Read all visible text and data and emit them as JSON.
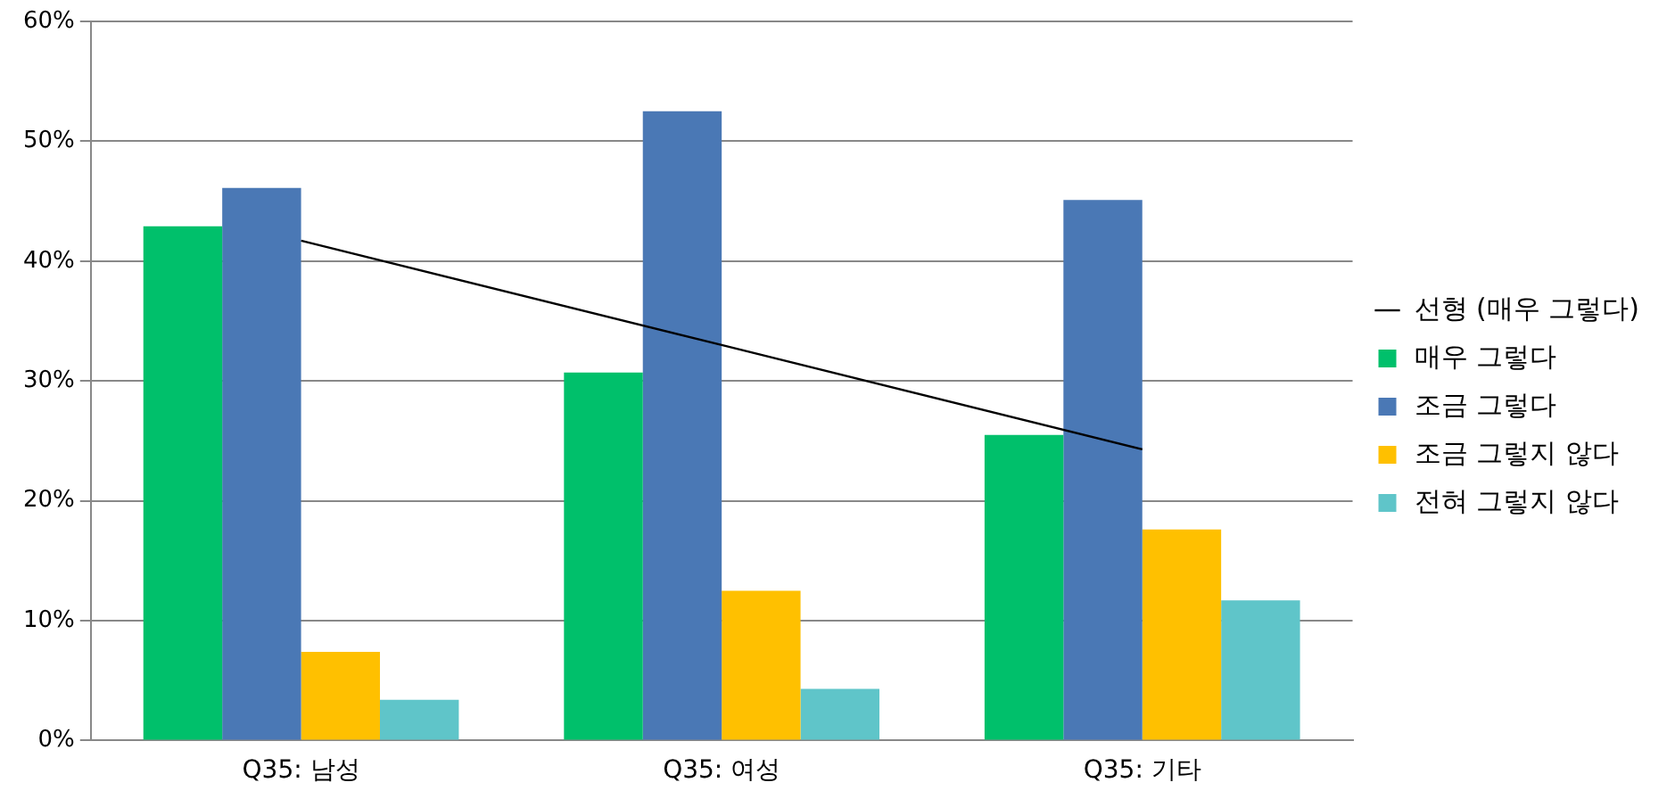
{
  "chart_data": {
    "type": "bar",
    "categories": [
      "Q35: 남성",
      "Q35: 여성",
      "Q35: 기타"
    ],
    "series": [
      {
        "name": "매우 그렇다",
        "color": "#00c06b",
        "values": [
          42.9,
          30.7,
          25.5
        ]
      },
      {
        "name": "조금 그렇다",
        "color": "#4a78b5",
        "values": [
          46.1,
          52.5,
          45.1
        ]
      },
      {
        "name": "조금 그렇지 않다",
        "color": "#ffc000",
        "values": [
          7.4,
          12.5,
          17.6
        ]
      },
      {
        "name": "전혀 그렇지 않다",
        "color": "#5fc5c9",
        "values": [
          3.4,
          4.3,
          11.7
        ]
      },
      {
        "name": "선형 (매우 그렇다)",
        "type": "line",
        "color": "#000000",
        "values": [
          41.7,
          33.0,
          24.3
        ]
      }
    ],
    "ylim": [
      0,
      60
    ],
    "yticks": [
      {
        "value": 0,
        "label": "0%"
      },
      {
        "value": 10,
        "label": "10%"
      },
      {
        "value": 20,
        "label": "20%"
      },
      {
        "value": 30,
        "label": "30%"
      },
      {
        "value": 40,
        "label": "40%"
      },
      {
        "value": 50,
        "label": "50%"
      },
      {
        "value": 60,
        "label": "60%"
      }
    ],
    "grid": "y",
    "legend": "right",
    "marker": "none",
    "line_style": "solid"
  }
}
